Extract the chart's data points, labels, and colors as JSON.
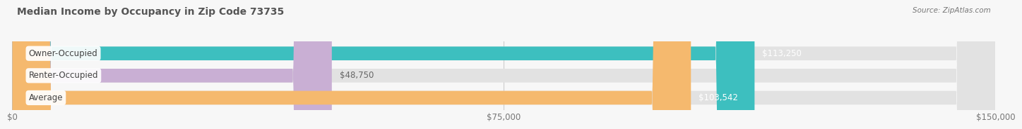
{
  "title": "Median Income by Occupancy in Zip Code 73735",
  "source": "Source: ZipAtlas.com",
  "categories": [
    "Owner-Occupied",
    "Renter-Occupied",
    "Average"
  ],
  "values": [
    113250,
    48750,
    103542
  ],
  "bar_colors": [
    "#3dbfbf",
    "#c9afd4",
    "#f5b96e"
  ],
  "bar_bg_color": "#e2e2e2",
  "value_label_colors": [
    "#ffffff",
    "#666666",
    "#ffffff"
  ],
  "value_labels": [
    "$113,250",
    "$48,750",
    "$103,542"
  ],
  "xlim": [
    0,
    150000
  ],
  "xticks": [
    0,
    75000,
    150000
  ],
  "xtick_labels": [
    "$0",
    "$75,000",
    "$150,000"
  ],
  "background_color": "#f7f7f7",
  "title_color": "#555555",
  "title_fontsize": 10,
  "fig_width": 14.06,
  "fig_height": 1.96
}
